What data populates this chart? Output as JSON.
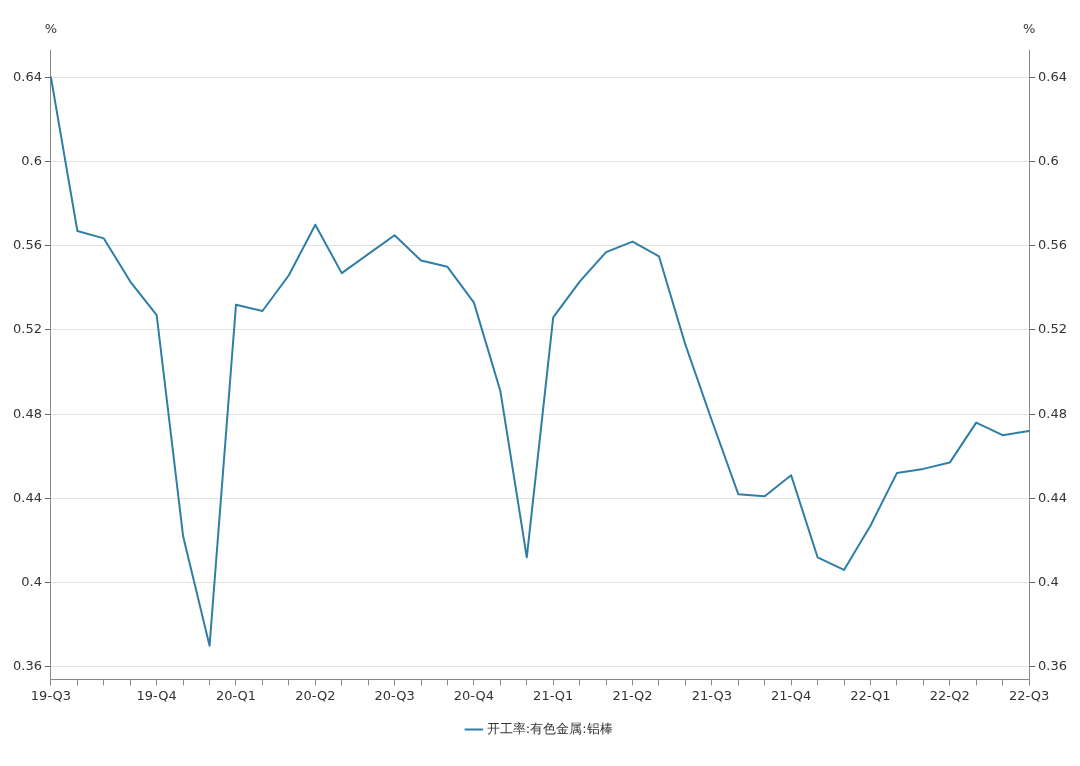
{
  "chart_data": {
    "type": "line",
    "ylabel": "%",
    "y2label": "%",
    "categories": [
      "19-Q3",
      null,
      null,
      null,
      "19-Q4",
      null,
      null,
      "20-Q1",
      null,
      null,
      "20-Q2",
      null,
      null,
      "20-Q3",
      null,
      null,
      "20-Q4",
      null,
      null,
      "21-Q1",
      null,
      null,
      "21-Q2",
      null,
      null,
      "21-Q3",
      null,
      null,
      "21-Q4",
      null,
      null,
      "22-Q1",
      null,
      null,
      "22-Q2",
      null,
      null,
      "22-Q3"
    ],
    "series": [
      {
        "name": "开工率:有色金属:铝棒",
        "color": "#2e7ea6",
        "values": [
          0.64,
          0.567,
          0.5635,
          0.543,
          0.527,
          0.422,
          0.37,
          0.532,
          0.529,
          0.546,
          0.57,
          0.547,
          0.556,
          0.565,
          0.553,
          0.55,
          0.533,
          0.491,
          0.412,
          0.526,
          0.543,
          0.557,
          0.562,
          0.555,
          0.513,
          0.477,
          0.442,
          0.441,
          0.451,
          0.412,
          0.406,
          0.427,
          0.452,
          0.454,
          0.457,
          0.476,
          0.47,
          0.472
        ]
      }
    ],
    "ylim": [
      0.354,
      0.653
    ],
    "yticks": [
      0.36,
      0.4,
      0.44,
      0.48,
      0.52,
      0.56,
      0.6,
      0.64
    ],
    "y2lim": [
      0.354,
      0.653
    ],
    "y2ticks": [
      0.36,
      0.4,
      0.44,
      0.48,
      0.52,
      0.56,
      0.6,
      0.64
    ],
    "grid": "y",
    "legend": "bottom",
    "marker": "none",
    "line_style": "solid"
  }
}
